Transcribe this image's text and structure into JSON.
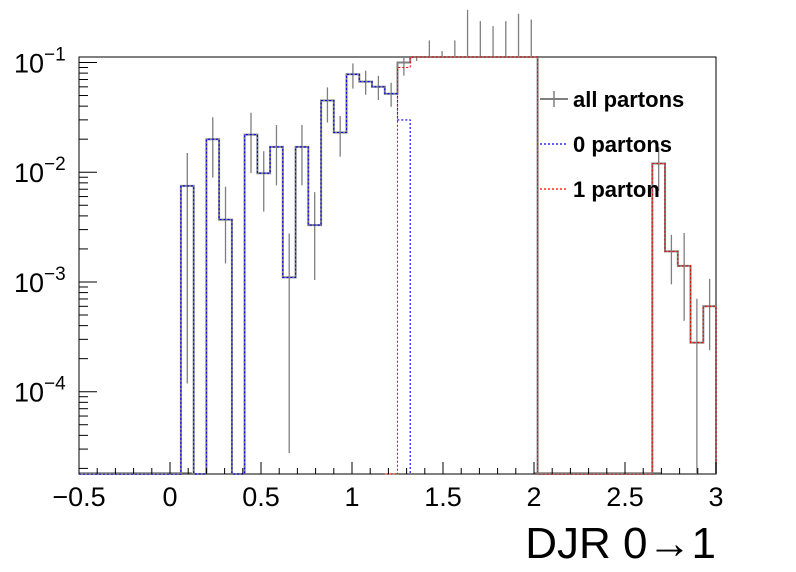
{
  "chart_data": {
    "type": "line",
    "xlabel": "DJR 0→1",
    "ylabel": "",
    "title": "",
    "xlim": [
      -0.5,
      3.0
    ],
    "ylim_log10": [
      -4.75,
      -0.95
    ],
    "yscale": "log",
    "grid": false,
    "legend_placement": "top-right",
    "x_tick_labels": [
      "−0.5",
      "0",
      "0.5",
      "1",
      "1.5",
      "2",
      "2.5",
      "3"
    ],
    "x_tick_values": [
      -0.5,
      0,
      0.5,
      1,
      1.5,
      2,
      2.5,
      3
    ],
    "y_tick_values": [
      0.0001,
      0.001,
      0.01,
      0.1
    ],
    "y_tick_labels": [
      {
        "base": "10",
        "exp": "−4"
      },
      {
        "base": "10",
        "exp": "−3"
      },
      {
        "base": "10",
        "exp": "−2"
      },
      {
        "base": "10",
        "exp": "−1"
      }
    ],
    "bin_edges_start": -0.5,
    "bin_width": 0.07,
    "series": [
      {
        "name": "all partons",
        "color": "#7f7f7f",
        "style": "solid",
        "range": [
          0,
          50
        ],
        "values": [
          0,
          0,
          0,
          0,
          0,
          0,
          0,
          0,
          0.0075,
          0,
          0.02,
          0.0037,
          0,
          0.022,
          0.0098,
          0.017,
          0.0011,
          0.017,
          0.0033,
          0.045,
          0.023,
          0.078,
          0.067,
          0.06,
          0.052,
          0.1,
          0.13,
          0.2,
          0.16,
          0.2,
          0.38,
          0.3,
          0.27,
          0.3,
          0.35,
          0.31,
          0,
          0,
          0,
          0,
          0,
          0,
          0,
          0,
          0,
          0.012,
          0.0019,
          0.0014,
          0.00028,
          0.0006
        ],
        "errors_log10": [
          [
            0,
            0
          ],
          [
            0,
            0
          ],
          [
            0,
            0
          ],
          [
            0,
            0
          ],
          [
            0,
            0
          ],
          [
            0,
            0
          ],
          [
            0,
            0
          ],
          [
            0,
            0
          ],
          [
            0.3,
            1.8
          ],
          [
            0,
            0
          ],
          [
            0.2,
            0.35
          ],
          [
            0.3,
            0.4
          ],
          [
            0,
            0
          ],
          [
            0.2,
            0.35
          ],
          [
            0.2,
            0.35
          ],
          [
            0.2,
            0.35
          ],
          [
            0.4,
            1.6
          ],
          [
            0.2,
            0.35
          ],
          [
            0.3,
            0.5
          ],
          [
            0.12,
            0.2
          ],
          [
            0.15,
            0.22
          ],
          [
            0.1,
            0.13
          ],
          [
            0.1,
            0.12
          ],
          [
            0.1,
            0.12
          ],
          [
            0.1,
            0.12
          ],
          [
            0.1,
            0.12
          ],
          [
            0.08,
            0.1
          ],
          [
            0.08,
            0.1
          ],
          [
            0.08,
            0.1
          ],
          [
            0.08,
            0.1
          ],
          [
            0.08,
            0.1
          ],
          [
            0.08,
            0.1
          ],
          [
            0.08,
            0.1
          ],
          [
            0.08,
            0.1
          ],
          [
            0.08,
            0.1
          ],
          [
            0.08,
            0.1
          ],
          [
            0,
            0
          ],
          [
            0,
            0
          ],
          [
            0,
            0
          ],
          [
            0,
            0
          ],
          [
            0,
            0
          ],
          [
            0,
            0
          ],
          [
            0,
            0
          ],
          [
            0,
            0
          ],
          [
            0,
            0
          ],
          [
            0.15,
            0.25
          ],
          [
            0.15,
            0.3
          ],
          [
            0.3,
            0.5
          ],
          [
            0.4,
            1.5
          ],
          [
            0.25,
            0.4
          ]
        ]
      },
      {
        "name": "0 partons",
        "color": "#0000ff",
        "style": "dotted",
        "range": [
          0,
          26
        ],
        "values": [
          0,
          0,
          0,
          0,
          0,
          0,
          0,
          0,
          0.0075,
          0,
          0.02,
          0.0037,
          0,
          0.022,
          0.0098,
          0.017,
          0.0011,
          0.017,
          0.0033,
          0.045,
          0.023,
          0.078,
          0.067,
          0.06,
          0.052,
          0.03
        ]
      },
      {
        "name": "1 parton",
        "color": "#ff0000",
        "style": "dotted",
        "range": [
          24,
          50
        ],
        "values": [
          0,
          0.09,
          0.12,
          0.2,
          0.16,
          0.2,
          0.38,
          0.3,
          0.27,
          0.3,
          0.35,
          0.31,
          0,
          0,
          0,
          0,
          0,
          0,
          0,
          0,
          0,
          0.012,
          0.0019,
          0.0014,
          0.00028,
          0.0006
        ]
      }
    ]
  },
  "legend": {
    "items": [
      {
        "label": "all partons",
        "color": "#7f7f7f"
      },
      {
        "label": "0 partons",
        "color": "#0000ff"
      },
      {
        "label": "1 parton",
        "color": "#ff0000"
      }
    ]
  }
}
